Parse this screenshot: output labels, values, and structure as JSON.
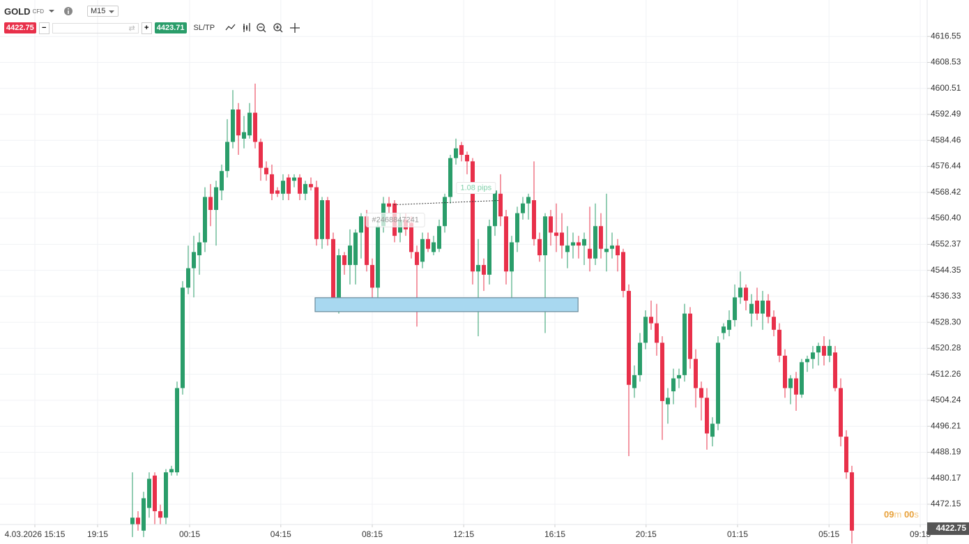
{
  "header": {
    "symbol": "GOLD",
    "kind": "CFD",
    "timeframe": "M15"
  },
  "trade_panel": {
    "sell": "4422.75",
    "minus": "−",
    "plus": "+",
    "buy": "4423.71",
    "sltp": "SL/TP"
  },
  "countdown": {
    "minutes": "09",
    "m": "m",
    "seconds": "00",
    "s": "s"
  },
  "chart_data": {
    "type": "candlestick",
    "up_color": "#2a9d6a",
    "down_color": "#e8304a",
    "grid": true,
    "xlim": [
      -23.75,
      142.5
    ],
    "ylim": [
      4465.9,
      4627.8
    ],
    "xticks": [
      {
        "value": -17.5,
        "label": "4.03.2026 15:15"
      },
      {
        "value": -6.25,
        "label": "19:15"
      },
      {
        "value": 10.25,
        "label": "00:15"
      },
      {
        "value": 26.6,
        "label": "04:15"
      },
      {
        "value": 43,
        "label": "08:15"
      },
      {
        "value": 59.4,
        "label": "12:15"
      },
      {
        "value": 75.75,
        "label": "16:15"
      },
      {
        "value": 92.1,
        "label": "20:15"
      },
      {
        "value": 108.5,
        "label": "01:15"
      },
      {
        "value": 124.9,
        "label": "05:15"
      },
      {
        "value": 141.25,
        "label": "09:15"
      }
    ],
    "yticks": [
      4616.55,
      4608.53,
      4600.51,
      4592.49,
      4584.46,
      4576.44,
      4568.42,
      {
        "value": 4560.4,
        "label": "4560.40"
      },
      4552.37,
      4544.35,
      4536.33,
      {
        "value": 4528.3,
        "label": "4528.30"
      },
      4520.28,
      4512.26,
      4504.24,
      4496.21,
      4488.19,
      4480.17,
      4472.15
    ],
    "open": [
      4466,
      4468,
      4464,
      4471,
      4481,
      4470,
      4468,
      4482,
      4482,
      4508,
      4539,
      4545,
      4549,
      4553,
      4567,
      4563,
      4569,
      4575,
      4584,
      4594,
      4585,
      4586,
      4593,
      4584,
      4576,
      4574,
      4569,
      4568,
      4573,
      4572,
      4573,
      4568,
      4571,
      4570,
      4554,
      4566,
      4554,
      4533,
      4549,
      4546,
      4546,
      4556,
      4561,
      4546,
      4539,
      4558,
      4565,
      4565,
      4556,
      4560,
      4559,
      4550,
      4547,
      4554,
      4550,
      4551,
      4558,
      4567,
      4579,
      4583,
      4580,
      4578,
      4544,
      4546,
      4543,
      4558,
      4568,
      4561,
      4544,
      4553,
      4562,
      4565,
      4566,
      4554,
      4549,
      4561,
      4556,
      4556,
      4550,
      4552,
      4553,
      4552,
      4551,
      4548,
      4558,
      4550,
      4551,
      4552,
      4550,
      4538,
      4508,
      4512,
      4522,
      4530,
      4528,
      4522,
      4503,
      4507,
      4511,
      4512,
      4531,
      4517,
      4508,
      4505,
      4493,
      4497,
      4525,
      4526,
      4529,
      4536,
      4539,
      4531,
      4535,
      4531,
      4535,
      4530,
      4526,
      4518,
      4508,
      4511,
      4506,
      4516,
      4517,
      4519,
      4521,
      4518,
      4519,
      4508,
      4493,
      4482
    ],
    "high": [
      4482,
      4470,
      4476,
      4482,
      4482,
      4472,
      4483,
      4484,
      4510,
      4541,
      4552,
      4555,
      4556,
      4570,
      4571,
      4572,
      4577,
      4591,
      4600,
      4596,
      4592,
      4596,
      4602,
      4585,
      4578,
      4577,
      4570,
      4574,
      4574,
      4574,
      4574,
      4572,
      4573,
      4572,
      4567,
      4567,
      4556,
      4551,
      4550,
      4557,
      4557,
      4562,
      4563,
      4548,
      4560,
      4567,
      4567,
      4566,
      4562,
      4562,
      4561,
      4552,
      4556,
      4556,
      4555,
      4560,
      4568,
      4580,
      4585,
      4584,
      4581,
      4579,
      4554,
      4548,
      4560,
      4571,
      4574,
      4563,
      4555,
      4564,
      4567,
      4568,
      4578,
      4556,
      4562,
      4563,
      4565,
      4562,
      4558,
      4556,
      4555,
      4556,
      4564,
      4565,
      4562,
      4568,
      4556,
      4554,
      4551,
      4540,
      4515,
      4525,
      4532,
      4535,
      4534,
      4524,
      4508,
      4514,
      4514,
      4534,
      4533,
      4520,
      4510,
      4508,
      4499,
      4524,
      4528,
      4532,
      4540,
      4544,
      4540,
      4537,
      4539,
      4538,
      4537,
      4532,
      4528,
      4520,
      4512,
      4513,
      4517,
      4518,
      4521,
      4522,
      4524,
      4523,
      4521,
      4511,
      4495,
      4484
    ],
    "low": [
      4462,
      4464,
      4462,
      4468,
      4466,
      4466,
      4466,
      4481,
      4481,
      4506,
      4537,
      4536,
      4543,
      4550,
      4558,
      4552,
      4566,
      4573,
      4582,
      4580,
      4582,
      4585,
      4582,
      4572,
      4572,
      4566,
      4567,
      4566,
      4566,
      4570,
      4566,
      4566,
      4569,
      4552,
      4551,
      4552,
      4532,
      4531,
      4543,
      4540,
      4540,
      4548,
      4544,
      4535,
      4536,
      4556,
      4562,
      4553,
      4553,
      4555,
      4548,
      4527,
      4545,
      4550,
      4549,
      4550,
      4556,
      4565,
      4577,
      4578,
      4574,
      4540,
      4524,
      4538,
      4540,
      4555,
      4558,
      4540,
      4532,
      4550,
      4560,
      4560,
      4552,
      4547,
      4525,
      4552,
      4550,
      4548,
      4545,
      4548,
      4548,
      4546,
      4544,
      4546,
      4548,
      4544,
      4548,
      4544,
      4536,
      4487,
      4505,
      4510,
      4520,
      4526,
      4518,
      4492,
      4497,
      4503,
      4508,
      4510,
      4514,
      4502,
      4498,
      4489,
      4490,
      4495,
      4523,
      4524,
      4527,
      4534,
      4532,
      4527,
      4529,
      4526,
      4528,
      4524,
      4516,
      4505,
      4503,
      4501,
      4505,
      4513,
      4514,
      4515,
      4515,
      4516,
      4507,
      4490,
      4480,
      4460
    ],
    "close": [
      4468,
      4466,
      4474,
      4480,
      4470,
      4468,
      4482,
      4483,
      4508,
      4539,
      4545,
      4550,
      4553,
      4567,
      4563,
      4570,
      4575,
      4584,
      4594,
      4586,
      4587,
      4593,
      4584,
      4576,
      4574,
      4568,
      4568,
      4572,
      4568,
      4573,
      4568,
      4571,
      4570,
      4554,
      4566,
      4554,
      4534,
      4549,
      4546,
      4552,
      4556,
      4561,
      4546,
      4539,
      4558,
      4565,
      4564,
      4555,
      4560,
      4557,
      4550,
      4546,
      4554,
      4551,
      4553,
      4558,
      4567,
      4579,
      4582,
      4580,
      4578,
      4544,
      4546,
      4543,
      4558,
      4569,
      4561,
      4544,
      4553,
      4562,
      4565,
      4567,
      4554,
      4549,
      4561,
      4556,
      4555,
      4552,
      4552,
      4553,
      4552,
      4554,
      4548,
      4558,
      4551,
      4551,
      4552,
      4549,
      4538,
      4509,
      4512,
      4522,
      4530,
      4528,
      4522,
      4504,
      4505,
      4511,
      4512,
      4531,
      4517,
      4508,
      4505,
      4494,
      4497,
      4522,
      4527,
      4529,
      4536,
      4539,
      4535,
      4534,
      4531,
      4535,
      4530,
      4526,
      4518,
      4508,
      4511,
      4506,
      4516,
      4517,
      4519,
      4521,
      4518,
      4521,
      4508,
      4493,
      4482,
      4464
    ],
    "zone": {
      "high": 4535.9,
      "low": 4531.6,
      "start": 32.75,
      "end": 79.9
    },
    "order_line": {
      "x": [
        46.9,
        65.6
      ],
      "y": [
        4564.6,
        4565.9
      ]
    },
    "annotations": [
      "1.08 pips",
      "#2468847241"
    ],
    "last_price": 4422.75
  }
}
